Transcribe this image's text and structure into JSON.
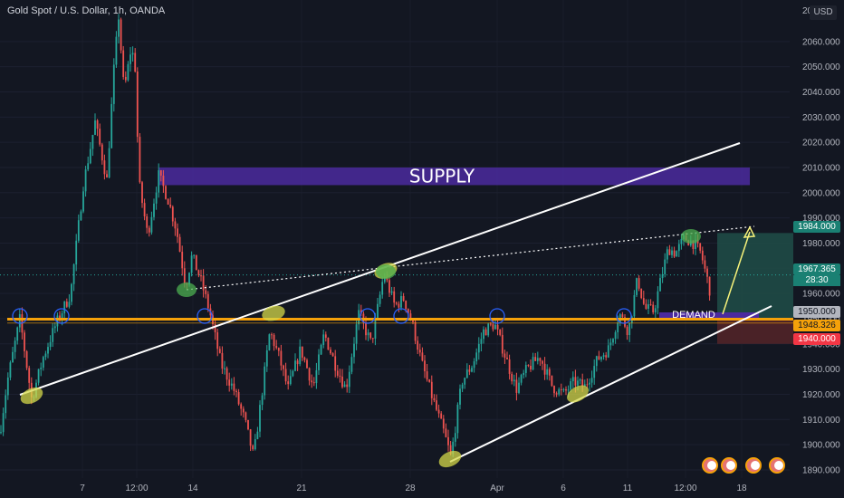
{
  "header": {
    "symbol_title": "Gold Spot / U.S. Dollar, 1h, OANDA",
    "currency": "USD"
  },
  "colors": {
    "background": "#131722",
    "up": "#26a69a",
    "down": "#ef5350",
    "supply_zone": "#4b2a9e",
    "demand_zone": "#4b2a9e",
    "key_level": "#f5a10a",
    "trendline": "#ffffff",
    "target_zone": "#1f4a46",
    "stop_zone": "#4d2328"
  },
  "chart_data": {
    "type": "candlestick",
    "symbol": "Gold Spot / U.S. Dollar",
    "interval": "1h",
    "exchange": "OANDA",
    "currency": "USD",
    "ylim": [
      1885,
      2070
    ],
    "y_ticks": [
      1890,
      1900,
      1910,
      1920,
      1930,
      1940,
      1950,
      1960,
      1970,
      1980,
      1990,
      2000,
      2010,
      2020,
      2030,
      2040,
      2050,
      2060
    ],
    "y_tick_labels": [
      "1890.000",
      "1900.000",
      "1910.000",
      "1920.000",
      "1930.000",
      "1940.000",
      "1950.000",
      "1960.000",
      "1970.000",
      "1980.000",
      "1990.000",
      "2000.000",
      "2010.000",
      "2020.000",
      "2030.000",
      "2040.000",
      "2050.000",
      "2060.000"
    ],
    "x_labels": [
      "7",
      "12:00",
      "14",
      "21",
      "28",
      "Apr",
      "6",
      "11",
      "12:00",
      "18"
    ],
    "price_path": [
      [
        0,
        1905
      ],
      [
        8,
        1925
      ],
      [
        22,
        1950
      ],
      [
        35,
        1918
      ],
      [
        48,
        1935
      ],
      [
        62,
        1948
      ],
      [
        78,
        1960
      ],
      [
        92,
        2003
      ],
      [
        105,
        2028
      ],
      [
        118,
        2005
      ],
      [
        126,
        2050
      ],
      [
        131,
        2070
      ],
      [
        137,
        2040
      ],
      [
        145,
        2058
      ],
      [
        150,
        2048
      ],
      [
        153,
        2005
      ],
      [
        163,
        1983
      ],
      [
        175,
        2007
      ],
      [
        185,
        1998
      ],
      [
        195,
        1985
      ],
      [
        205,
        1963
      ],
      [
        212,
        1975
      ],
      [
        222,
        1965
      ],
      [
        232,
        1952
      ],
      [
        244,
        1932
      ],
      [
        258,
        1922
      ],
      [
        270,
        1910
      ],
      [
        280,
        1895
      ],
      [
        288,
        1917
      ],
      [
        298,
        1945
      ],
      [
        308,
        1935
      ],
      [
        318,
        1922
      ],
      [
        332,
        1938
      ],
      [
        346,
        1923
      ],
      [
        358,
        1944
      ],
      [
        370,
        1932
      ],
      [
        382,
        1922
      ],
      [
        396,
        1952
      ],
      [
        410,
        1940
      ],
      [
        424,
        1968
      ],
      [
        436,
        1955
      ],
      [
        446,
        1958
      ],
      [
        456,
        1947
      ],
      [
        466,
        1932
      ],
      [
        478,
        1918
      ],
      [
        490,
        1905
      ],
      [
        498,
        1895
      ],
      [
        510,
        1925
      ],
      [
        522,
        1932
      ],
      [
        534,
        1945
      ],
      [
        546,
        1948
      ],
      [
        558,
        1935
      ],
      [
        570,
        1922
      ],
      [
        582,
        1930
      ],
      [
        596,
        1935
      ],
      [
        610,
        1923
      ],
      [
        622,
        1920
      ],
      [
        634,
        1925
      ],
      [
        646,
        1923
      ],
      [
        660,
        1934
      ],
      [
        672,
        1938
      ],
      [
        684,
        1952
      ],
      [
        694,
        1945
      ],
      [
        704,
        1966
      ],
      [
        712,
        1954
      ],
      [
        722,
        1953
      ],
      [
        730,
        1966
      ],
      [
        738,
        1978
      ],
      [
        746,
        1976
      ],
      [
        756,
        1982
      ],
      [
        766,
        1980
      ],
      [
        774,
        1976
      ],
      [
        784,
        1961
      ]
    ],
    "last_price": "1967.365",
    "countdown": "28:30",
    "annotations": {
      "supply_zone": {
        "label": "SUPPLY",
        "from": 2003,
        "to": 2010
      },
      "demand_zone": {
        "label": "DEMAND",
        "from": 1950,
        "to": 1952.5
      },
      "key_level": 1950,
      "target_price": "1984.000",
      "entry_price": "1950.000",
      "stop_price": "1940.000",
      "level_price": "1948.326"
    }
  }
}
